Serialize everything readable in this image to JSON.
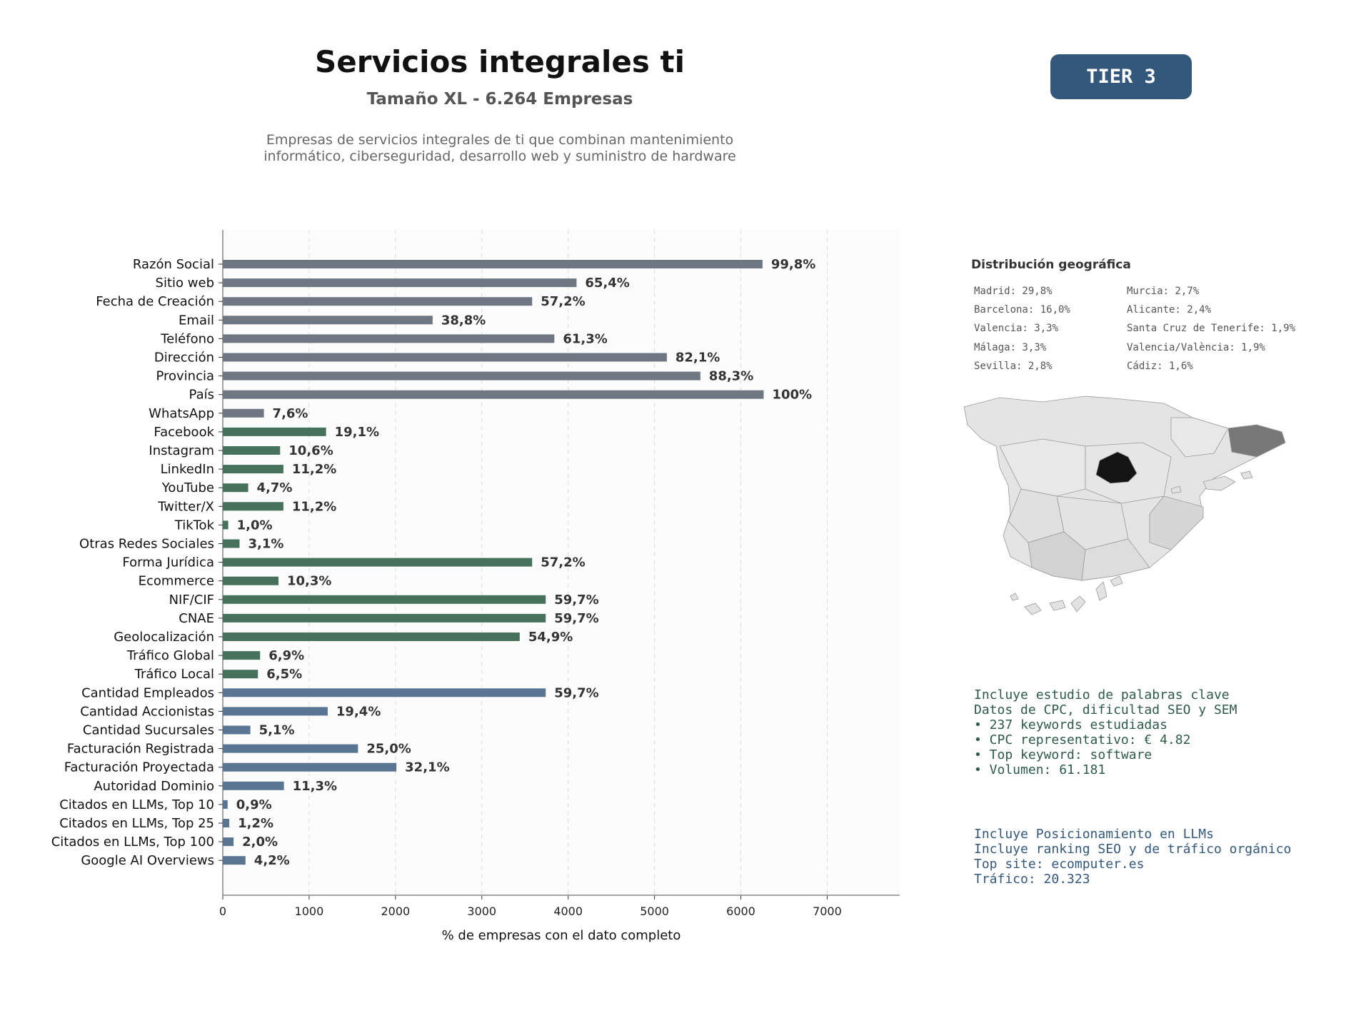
{
  "header": {
    "title": "Servicios integrales ti",
    "subtitle": "Tamaño XL - 6.264 Empresas",
    "description_lines": [
      "Empresas de servicios integrales de ti que combinan mantenimiento",
      "informático, ciberseguridad, desarrollo web y suministro de hardware"
    ],
    "badge": "TIER 3"
  },
  "colors": {
    "gray": "#6e7782",
    "green": "#46725d",
    "blue": "#5a7592",
    "badge": "#34587c"
  },
  "chart_data": {
    "type": "bar",
    "orientation": "horizontal",
    "xlabel": "% de empresas con el dato completo",
    "xlim": [
      0,
      7840
    ],
    "xticks": [
      0,
      1000,
      2000,
      3000,
      4000,
      5000,
      6000,
      7000
    ],
    "grid": "vertical dashed",
    "categories": [
      "Razón Social",
      "Sitio web",
      "Fecha de Creación",
      "Email",
      "Teléfono",
      "Dirección",
      "Provincia",
      "País",
      "WhatsApp",
      "Facebook",
      "Instagram",
      "LinkedIn",
      "YouTube",
      "Twitter/X",
      "TikTok",
      "Otras Redes Sociales",
      "Forma Jurídica",
      "Ecommerce",
      "NIF/CIF",
      "CNAE",
      "Geolocalización",
      "Tráfico Global",
      "Tráfico Local",
      "Cantidad Empleados",
      "Cantidad Accionistas",
      "Cantidad Sucursales",
      "Facturación Registrada",
      "Facturación Proyectada",
      "Autoridad Dominio",
      "Citados en LLMs, Top 10",
      "Citados en LLMs, Top 25",
      "Citados en LLMs, Top 100",
      "Google AI Overviews"
    ],
    "values": [
      6251,
      4097,
      3583,
      2430,
      3840,
      5143,
      5531,
      6264,
      476,
      1196,
      664,
      702,
      294,
      702,
      63,
      194,
      3583,
      645,
      3740,
      3740,
      3439,
      432,
      407,
      3740,
      1215,
      319,
      1566,
      2011,
      708,
      56,
      75,
      125,
      263
    ],
    "labels": [
      "99,8%",
      "65,4%",
      "57,2%",
      "38,8%",
      "61,3%",
      "82,1%",
      "88,3%",
      "100%",
      "7,6%",
      "19,1%",
      "10,6%",
      "11,2%",
      "4,7%",
      "11,2%",
      "1,0%",
      "3,1%",
      "57,2%",
      "10,3%",
      "59,7%",
      "59,7%",
      "54,9%",
      "6,9%",
      "6,5%",
      "59,7%",
      "19,4%",
      "5,1%",
      "25,0%",
      "32,1%",
      "11,3%",
      "0,9%",
      "1,2%",
      "2,0%",
      "4,2%"
    ],
    "groups": [
      "gray",
      "gray",
      "gray",
      "gray",
      "gray",
      "gray",
      "gray",
      "gray",
      "gray",
      "green",
      "green",
      "green",
      "green",
      "green",
      "green",
      "green",
      "green",
      "green",
      "green",
      "green",
      "green",
      "green",
      "green",
      "blue",
      "blue",
      "blue",
      "blue",
      "blue",
      "blue",
      "blue",
      "blue",
      "blue",
      "blue"
    ]
  },
  "geo": {
    "title": "Distribución geográfica",
    "col1": [
      "Madrid: 29,8%",
      "Barcelona: 16,0%",
      "Valencia: 3,3%",
      "Málaga: 3,3%",
      "Sevilla: 2,8%"
    ],
    "col2": [
      "Murcia: 2,7%",
      "Alicante: 2,4%",
      "Santa Cruz de Tenerife: 1,9%",
      "Valencia/València: 1,9%",
      "Cádiz: 1,6%"
    ]
  },
  "keywords": {
    "lines": [
      "Incluye estudio de palabras clave",
      "Datos de CPC, dificultad SEO y SEM",
      "",
      "• 237 keywords estudiadas",
      "• CPC representativo: € 4.82",
      "• Top keyword: software",
      "• Volumen: 61.181"
    ]
  },
  "llm": {
    "lines": [
      "Incluye Posicionamiento en LLMs",
      "Incluye ranking SEO y de tráfico orgánico",
      "",
      "Top site: ecomputer.es",
      "Tráfico: 20.323"
    ]
  }
}
